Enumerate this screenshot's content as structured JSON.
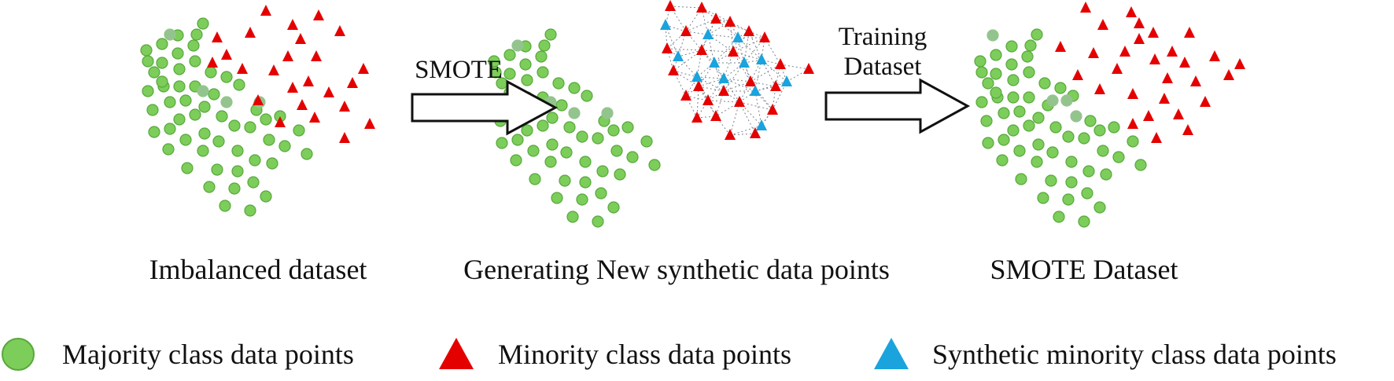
{
  "colors": {
    "majority": "#7ccd5a",
    "majority_stroke": "#58a83c",
    "minority": "#e50000",
    "synthetic": "#1aa3dd",
    "overlap": "#94c48e",
    "dotted_line": "#7a8590"
  },
  "panels": [
    {
      "caption": "Imbalanced dataset"
    },
    {
      "caption": "Generating New synthetic data points"
    },
    {
      "caption": "SMOTE Dataset"
    }
  ],
  "arrows": [
    {
      "label_lines": [
        "SMOTE"
      ]
    },
    {
      "label_lines": [
        "Training",
        "Dataset"
      ]
    }
  ],
  "legend": [
    {
      "icon": "green-circle-icon",
      "label": "Majority class data points"
    },
    {
      "icon": "red-triangle-icon",
      "label": "Minority class data points"
    },
    {
      "icon": "blue-triangle-icon",
      "label": "Synthetic minority class data points"
    }
  ]
}
